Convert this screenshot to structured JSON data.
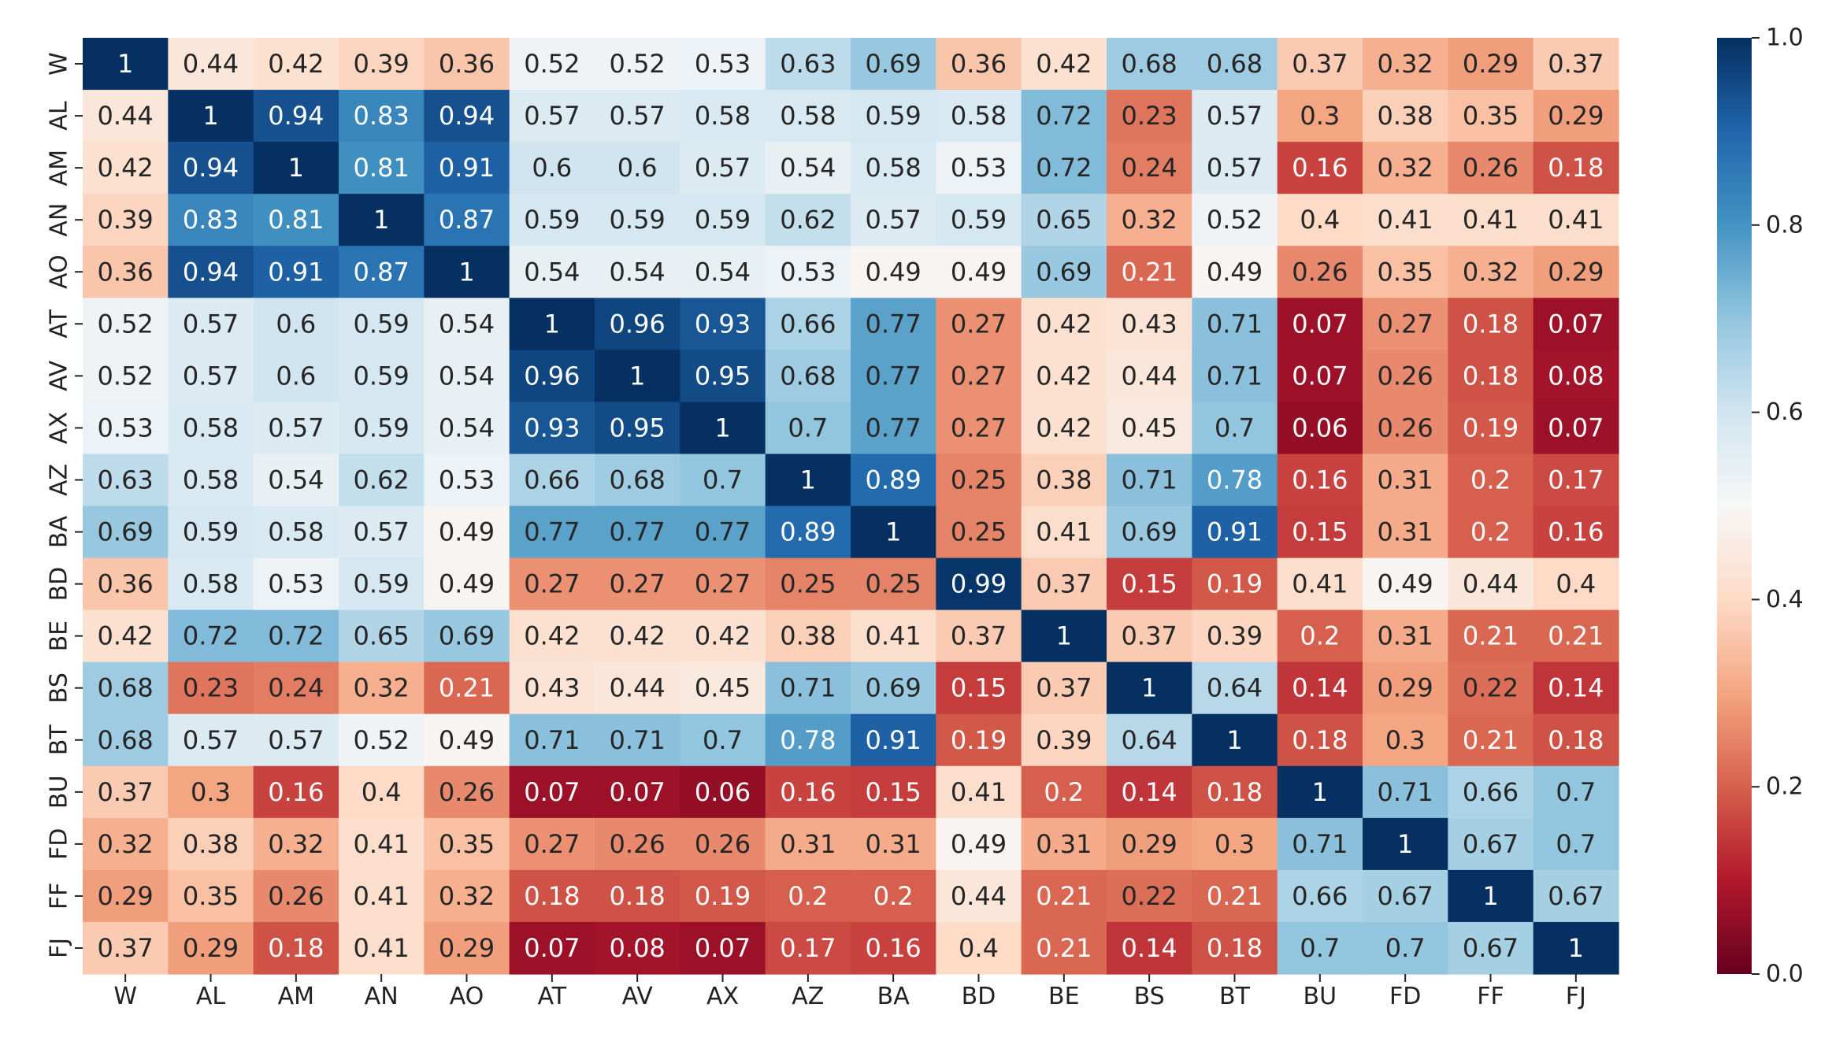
{
  "chart_data": {
    "type": "heatmap",
    "title": "",
    "xlabel": "",
    "ylabel": "",
    "x_labels": [
      "W",
      "AL",
      "AM",
      "AN",
      "AO",
      "AT",
      "AV",
      "AX",
      "AZ",
      "BA",
      "BD",
      "BE",
      "BS",
      "BT",
      "BU",
      "FD",
      "FF",
      "FJ"
    ],
    "y_labels": [
      "W",
      "AL",
      "AM",
      "AN",
      "AO",
      "AT",
      "AV",
      "AX",
      "AZ",
      "BA",
      "BD",
      "BE",
      "BS",
      "BT",
      "BU",
      "FD",
      "FF",
      "FJ"
    ],
    "values": [
      [
        1,
        0.44,
        0.42,
        0.39,
        0.36,
        0.52,
        0.52,
        0.53,
        0.63,
        0.69,
        0.36,
        0.42,
        0.68,
        0.68,
        0.37,
        0.32,
        0.29,
        0.37
      ],
      [
        0.44,
        1,
        0.94,
        0.83,
        0.94,
        0.57,
        0.57,
        0.58,
        0.58,
        0.59,
        0.58,
        0.72,
        0.23,
        0.57,
        0.3,
        0.38,
        0.35,
        0.29
      ],
      [
        0.42,
        0.94,
        1,
        0.81,
        0.91,
        0.6,
        0.6,
        0.57,
        0.54,
        0.58,
        0.53,
        0.72,
        0.24,
        0.57,
        0.16,
        0.32,
        0.26,
        0.18
      ],
      [
        0.39,
        0.83,
        0.81,
        1,
        0.87,
        0.59,
        0.59,
        0.59,
        0.62,
        0.57,
        0.59,
        0.65,
        0.32,
        0.52,
        0.4,
        0.41,
        0.41,
        0.41
      ],
      [
        0.36,
        0.94,
        0.91,
        0.87,
        1,
        0.54,
        0.54,
        0.54,
        0.53,
        0.49,
        0.49,
        0.69,
        0.21,
        0.49,
        0.26,
        0.35,
        0.32,
        0.29
      ],
      [
        0.52,
        0.57,
        0.6,
        0.59,
        0.54,
        1,
        0.96,
        0.93,
        0.66,
        0.77,
        0.27,
        0.42,
        0.43,
        0.71,
        0.07,
        0.27,
        0.18,
        0.07
      ],
      [
        0.52,
        0.57,
        0.6,
        0.59,
        0.54,
        0.96,
        1,
        0.95,
        0.68,
        0.77,
        0.27,
        0.42,
        0.44,
        0.71,
        0.07,
        0.26,
        0.18,
        0.08
      ],
      [
        0.53,
        0.58,
        0.57,
        0.59,
        0.54,
        0.93,
        0.95,
        1,
        0.7,
        0.77,
        0.27,
        0.42,
        0.45,
        0.7,
        0.06,
        0.26,
        0.19,
        0.07
      ],
      [
        0.63,
        0.58,
        0.54,
        0.62,
        0.53,
        0.66,
        0.68,
        0.7,
        1,
        0.89,
        0.25,
        0.38,
        0.71,
        0.78,
        0.16,
        0.31,
        0.2,
        0.17
      ],
      [
        0.69,
        0.59,
        0.58,
        0.57,
        0.49,
        0.77,
        0.77,
        0.77,
        0.89,
        1,
        0.25,
        0.41,
        0.69,
        0.91,
        0.15,
        0.31,
        0.2,
        0.16
      ],
      [
        0.36,
        0.58,
        0.53,
        0.59,
        0.49,
        0.27,
        0.27,
        0.27,
        0.25,
        0.25,
        0.99,
        0.37,
        0.15,
        0.19,
        0.41,
        0.49,
        0.44,
        0.4
      ],
      [
        0.42,
        0.72,
        0.72,
        0.65,
        0.69,
        0.42,
        0.42,
        0.42,
        0.38,
        0.41,
        0.37,
        1,
        0.37,
        0.39,
        0.2,
        0.31,
        0.21,
        0.21
      ],
      [
        0.68,
        0.23,
        0.24,
        0.32,
        0.21,
        0.43,
        0.44,
        0.45,
        0.71,
        0.69,
        0.15,
        0.37,
        1,
        0.64,
        0.14,
        0.29,
        0.22,
        0.14
      ],
      [
        0.68,
        0.57,
        0.57,
        0.52,
        0.49,
        0.71,
        0.71,
        0.7,
        0.78,
        0.91,
        0.19,
        0.39,
        0.64,
        1,
        0.18,
        0.3,
        0.21,
        0.18
      ],
      [
        0.37,
        0.3,
        0.16,
        0.4,
        0.26,
        0.07,
        0.07,
        0.06,
        0.16,
        0.15,
        0.41,
        0.2,
        0.14,
        0.18,
        1,
        0.71,
        0.66,
        0.7
      ],
      [
        0.32,
        0.38,
        0.32,
        0.41,
        0.35,
        0.27,
        0.26,
        0.26,
        0.31,
        0.31,
        0.49,
        0.31,
        0.29,
        0.3,
        0.71,
        1,
        0.67,
        0.7
      ],
      [
        0.29,
        0.35,
        0.26,
        0.41,
        0.32,
        0.18,
        0.18,
        0.19,
        0.2,
        0.2,
        0.44,
        0.21,
        0.22,
        0.21,
        0.66,
        0.67,
        1,
        0.67
      ],
      [
        0.37,
        0.29,
        0.18,
        0.41,
        0.29,
        0.07,
        0.08,
        0.07,
        0.17,
        0.16,
        0.4,
        0.21,
        0.14,
        0.18,
        0.7,
        0.7,
        0.67,
        1
      ]
    ],
    "colorbar": {
      "colormap": "RdBu",
      "vmin": 0.0,
      "vmax": 1.0,
      "ticks": [
        "0.0",
        "0.2",
        "0.4",
        "0.6",
        "0.8",
        "1.0"
      ]
    },
    "annotations": true,
    "grid": false
  }
}
